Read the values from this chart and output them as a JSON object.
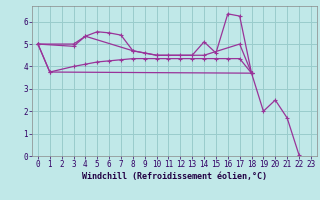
{
  "background_color": "#c0e8e8",
  "grid_color": "#99cccc",
  "line_color": "#993399",
  "marker": "+",
  "marker_size": 3,
  "line_width": 0.9,
  "xlabel": "Windchill (Refroidissement éolien,°C)",
  "xlabel_fontsize": 6.0,
  "tick_fontsize": 5.5,
  "xlim": [
    -0.5,
    23.5
  ],
  "ylim": [
    0,
    6.7
  ],
  "yticks": [
    0,
    1,
    2,
    3,
    4,
    5,
    6
  ],
  "xticks": [
    0,
    1,
    2,
    3,
    4,
    5,
    6,
    7,
    8,
    9,
    10,
    11,
    12,
    13,
    14,
    15,
    16,
    17,
    18,
    19,
    20,
    21,
    22,
    23
  ],
  "s1_x": [
    0,
    3,
    4,
    5,
    6,
    7,
    8,
    9,
    10,
    11,
    12,
    13,
    14,
    15,
    16,
    17,
    18
  ],
  "s1_y": [
    5.0,
    5.0,
    5.35,
    5.55,
    5.5,
    5.4,
    4.7,
    4.6,
    4.5,
    4.5,
    4.5,
    4.5,
    5.1,
    4.6,
    6.35,
    6.25,
    3.7
  ],
  "s2_x": [
    0,
    3,
    4,
    8,
    10,
    14,
    17,
    18
  ],
  "s2_y": [
    5.0,
    4.9,
    5.35,
    4.7,
    4.5,
    4.5,
    5.0,
    3.7
  ],
  "s3_x": [
    0,
    1,
    3,
    4,
    5,
    6,
    7,
    8,
    9,
    10,
    11,
    12,
    13,
    14,
    15,
    16,
    17,
    18
  ],
  "s3_y": [
    5.0,
    3.75,
    4.0,
    4.1,
    4.2,
    4.25,
    4.3,
    4.35,
    4.35,
    4.35,
    4.35,
    4.35,
    4.35,
    4.35,
    4.35,
    4.35,
    4.35,
    3.7
  ],
  "s4_x": [
    0,
    1,
    18,
    19,
    20,
    21,
    22
  ],
  "s4_y": [
    5.0,
    3.75,
    3.7,
    2.0,
    2.5,
    1.7,
    0.05
  ]
}
